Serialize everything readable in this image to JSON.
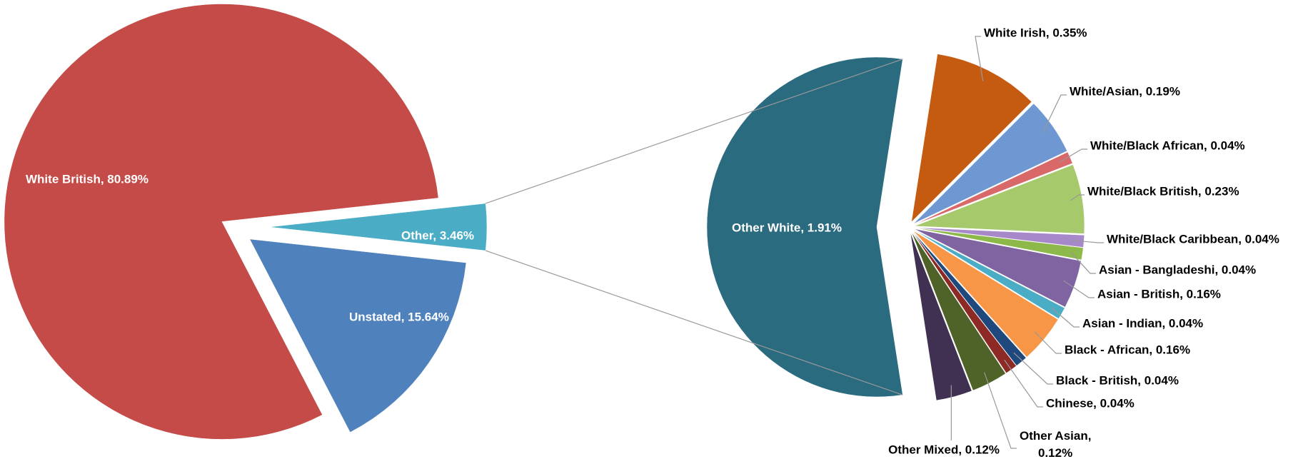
{
  "chart_data": [
    {
      "type": "pie",
      "values": [
        80.89,
        15.64,
        3.46
      ],
      "value_labels": [
        "White British, 80.89%",
        "Unstated, 15.64%",
        "Other, 3.46%"
      ],
      "colors": [
        "#c44b47",
        "#4f81bd",
        "#4bacc6"
      ]
    },
    {
      "type": "pie",
      "values": [
        1.91,
        0.35,
        0.19,
        0.04,
        0.23,
        0.04,
        0.04,
        0.16,
        0.04,
        0.16,
        0.04,
        0.04,
        0.12,
        0.12
      ],
      "value_labels": [
        "Other White, 1.91%",
        "White Irish, 0.35%",
        "White/Asian, 0.19%",
        "White/Black African, 0.04%",
        "White/Black British, 0.23%",
        "White/Black Caribbean, 0.04%",
        "Asian - Bangladeshi, 0.04%",
        "Asian - British, 0.16%",
        "Asian - Indian, 0.04%",
        "Black - African, 0.16%",
        "Black - British, 0.04%",
        "Chinese, 0.04%",
        "Other Asian, 0.12%",
        "Other Mixed, 0.12%"
      ],
      "colors": [
        "#2a6b80",
        "#c55a11",
        "#6f97d2",
        "#d96868",
        "#a5c96b",
        "#a788c8",
        "#8db84a",
        "#8064a2",
        "#4bacc6",
        "#f79646",
        "#1f497d",
        "#8e2a26",
        "#4f6228",
        "#403152"
      ]
    }
  ]
}
